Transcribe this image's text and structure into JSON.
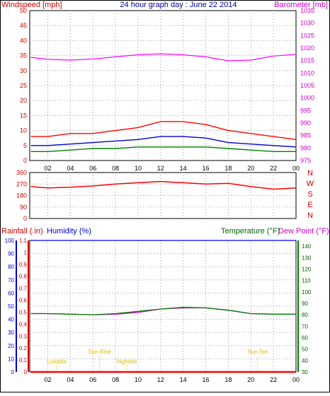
{
  "chart_data": [
    {
      "type": "line",
      "title": "24 hour graph day : June 22 2014",
      "ylabel_left": "Windspeed [mph]",
      "ylabel_right": "Barometer [mb]",
      "ylim_left": [
        0,
        50
      ],
      "yticks_left": [
        "0",
        "5",
        "10",
        "15",
        "20",
        "25",
        "30",
        "35",
        "40",
        "45",
        "50"
      ],
      "ylim_right": [
        975,
        1035
      ],
      "yticks_right": [
        "975",
        "980",
        "985",
        "990",
        "995",
        "1000",
        "1005",
        "1010",
        "1015",
        "1020",
        "1025",
        "1030",
        "1035"
      ],
      "xlim": [
        0.4,
        24
      ],
      "xticks": [
        "02",
        "04",
        "06",
        "08",
        "10",
        "12",
        "14",
        "16",
        "18",
        "20",
        "22",
        "00"
      ],
      "grid": true,
      "series": [
        {
          "key": "gust",
          "color": "#ff0000",
          "axis": "left",
          "x": [
            0.5,
            2,
            4,
            6,
            8,
            10,
            12,
            14,
            16,
            18,
            20,
            22,
            24
          ],
          "y": [
            8,
            8,
            9,
            9,
            10,
            11,
            13,
            13,
            12,
            10,
            9,
            8,
            7
          ]
        },
        {
          "key": "avg",
          "color": "#0000cc",
          "axis": "left",
          "x": [
            0.5,
            2,
            4,
            6,
            8,
            10,
            12,
            14,
            16,
            18,
            20,
            22,
            24
          ],
          "y": [
            5,
            5,
            5.5,
            6,
            6.5,
            7,
            8,
            8,
            7.5,
            6,
            5.5,
            5,
            4.5
          ]
        },
        {
          "key": "low",
          "color": "#008000",
          "axis": "left",
          "x": [
            0.5,
            2,
            4,
            6,
            8,
            10,
            12,
            14,
            16,
            18,
            20,
            22,
            24
          ],
          "y": [
            3,
            3,
            3.5,
            4,
            4,
            4.5,
            4.5,
            4.5,
            4.5,
            4,
            3.5,
            3,
            3
          ]
        },
        {
          "key": "barometer",
          "color": "#ff00ff",
          "axis": "right",
          "x": [
            0.5,
            2,
            4,
            6,
            8,
            10,
            12,
            14,
            16,
            18,
            20,
            22,
            24
          ],
          "y": [
            1016.3,
            1015.5,
            1015.2,
            1015.6,
            1016.5,
            1017.3,
            1017.7,
            1017.3,
            1016.5,
            1014.9,
            1015.2,
            1016.8,
            1017.5
          ]
        }
      ]
    },
    {
      "type": "scatter",
      "ylabel_right": "N W S E N",
      "ylim": [
        0,
        360
      ],
      "yticks": [
        "0",
        "90",
        "180",
        "270",
        "360"
      ],
      "xlim": [
        0.4,
        24
      ],
      "xticks": [
        "02",
        "04",
        "06",
        "08",
        "10",
        "12",
        "14",
        "16",
        "18",
        "20",
        "22",
        "00"
      ],
      "grid": true,
      "series": [
        {
          "key": "direction",
          "color": "#ff0000",
          "x": [
            0.5,
            2,
            4,
            6,
            8,
            10,
            12,
            14,
            16,
            18,
            20,
            22,
            24
          ],
          "y": [
            250,
            240,
            245,
            255,
            270,
            280,
            290,
            280,
            270,
            275,
            250,
            230,
            240
          ]
        }
      ]
    },
    {
      "type": "line",
      "ylabel_left_1": "Rainfall (.in)",
      "ylabel_left_2": "Humidity (%)",
      "ylabel_right_1": "Temperature (°F)",
      "ylabel_right_2": "Dew Point (°F)",
      "ylim_humidity": [
        0,
        100
      ],
      "yticks_humidity": [
        "0",
        "10",
        "20",
        "30",
        "40",
        "50",
        "60",
        "70",
        "80",
        "90",
        "100"
      ],
      "ylim_rain": [
        0,
        1.1
      ],
      "yticks_rain": [
        "0",
        "0.1",
        "0.2",
        "0.3",
        "0.4",
        "0.5",
        "0.6",
        "0.7",
        "0.8",
        "0.9",
        "1",
        "1.1"
      ],
      "ylim_temp": [
        30,
        145
      ],
      "yticks_temp": [
        "30",
        "40",
        "50",
        "60",
        "70",
        "80",
        "90",
        "100",
        "110",
        "120",
        "130",
        "140"
      ],
      "xlim": [
        0.4,
        24
      ],
      "xticks": [
        "02",
        "04",
        "06",
        "08",
        "10",
        "12",
        "14",
        "16",
        "18",
        "20",
        "22",
        "00"
      ],
      "annotations": [
        "Lowtide",
        "Sun Rise",
        "Hightide",
        "Sun Set"
      ],
      "annotation_x": [
        2.8,
        6.6,
        9.0,
        20.6
      ],
      "grid": true,
      "series": [
        {
          "key": "humidity",
          "color": "#0000ff",
          "axis": "humidity",
          "x": [
            0.5,
            24
          ],
          "y": [
            100,
            100
          ]
        },
        {
          "key": "dewpoint",
          "color": "#cc00cc",
          "axis": "temp",
          "x": [
            0.5,
            2,
            4,
            6,
            8,
            10,
            12,
            14,
            16,
            18,
            20,
            22,
            24
          ],
          "y": [
            81,
            81,
            80.5,
            80,
            80.5,
            82,
            85,
            86,
            86,
            84,
            81,
            80.5,
            80.5
          ]
        },
        {
          "key": "temperature",
          "color": "#008000",
          "axis": "temp",
          "x": [
            0.5,
            2,
            4,
            6,
            8,
            10,
            12,
            14,
            16,
            18,
            20,
            22,
            24
          ],
          "y": [
            81,
            81,
            80.5,
            80,
            81,
            83,
            85,
            86.5,
            86,
            84,
            81,
            80.5,
            80.5
          ]
        },
        {
          "key": "rainfall",
          "color": "#ff0000",
          "axis": "rain",
          "x": [
            0.5,
            24
          ],
          "y": [
            0,
            0
          ]
        }
      ]
    }
  ]
}
